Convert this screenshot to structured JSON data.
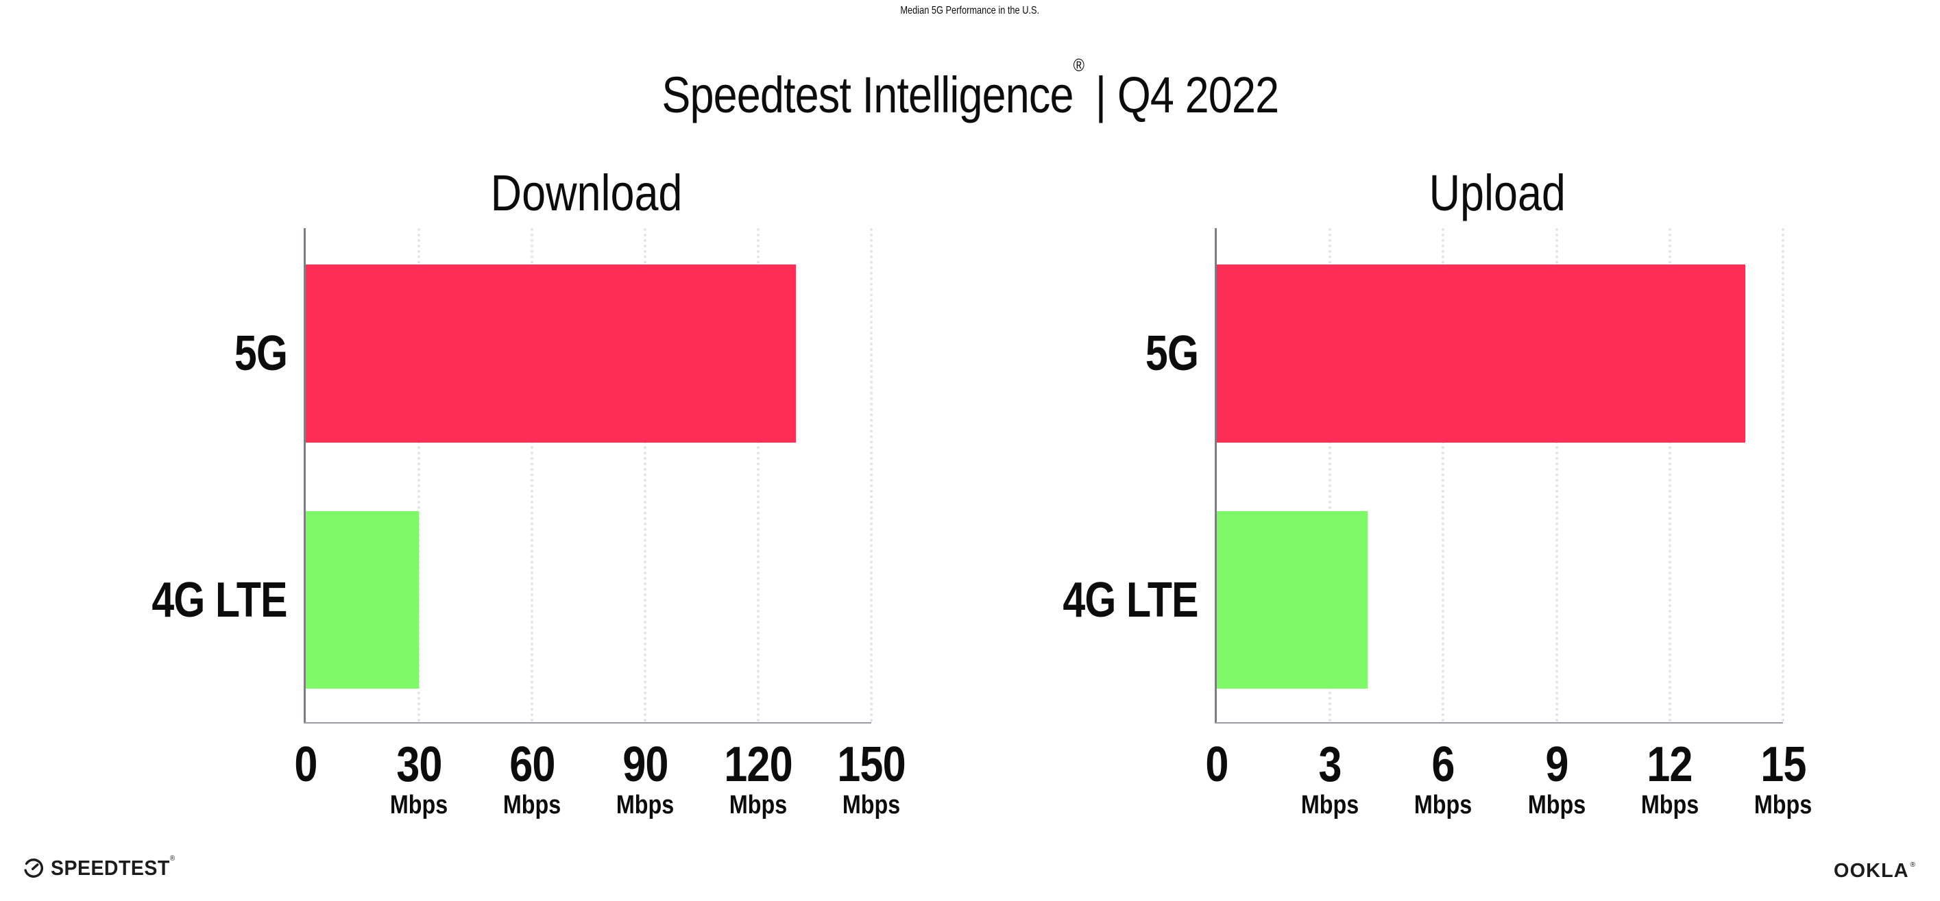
{
  "header": {
    "title": "Median 5G Performance in the U.S.",
    "subtitle_brand": "Speedtest Intelligence",
    "subtitle_reg": "®",
    "subtitle_rest": " | Q4 2022"
  },
  "chart_data": [
    {
      "type": "bar",
      "orientation": "horizontal",
      "title": "Download",
      "categories": [
        "5G",
        "4G LTE"
      ],
      "values": [
        130,
        30
      ],
      "unit": "Mbps",
      "xlim": [
        0,
        150
      ],
      "xticks": [
        0,
        30,
        60,
        90,
        120,
        150
      ],
      "bar_colors": [
        "#fd2d55",
        "#7dfa66"
      ],
      "grid": "dotted-vertical",
      "legend": "none"
    },
    {
      "type": "bar",
      "orientation": "horizontal",
      "title": "Upload",
      "categories": [
        "5G",
        "4G LTE"
      ],
      "values": [
        14,
        4
      ],
      "unit": "Mbps",
      "xlim": [
        0,
        15
      ],
      "xticks": [
        0,
        3,
        6,
        9,
        12,
        15
      ],
      "bar_colors": [
        "#fd2d55",
        "#7dfa66"
      ],
      "grid": "dotted-vertical",
      "legend": "none"
    }
  ],
  "footer": {
    "speedtest_label": "SPEEDTEST",
    "speedtest_mark": "®",
    "ookla_label": "OOKLA",
    "ookla_mark": "®"
  },
  "colors": {
    "bar_5g": "#fd2d55",
    "bar_4g_lte": "#7dfa66",
    "axis": "#9b9ba3",
    "y_axis": "#7d7d85",
    "grid": "#e3e3ed",
    "text": "#0c0c0c",
    "background": "#ffffff"
  }
}
